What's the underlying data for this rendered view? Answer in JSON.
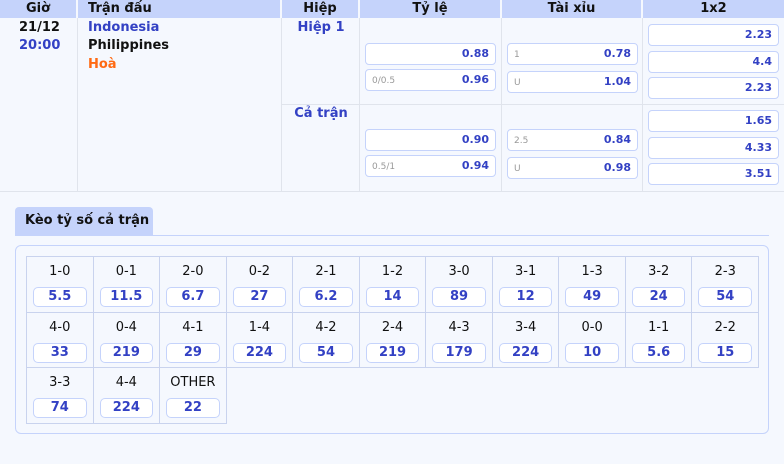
{
  "headers": {
    "time": "Giờ",
    "match": "Trận đấu",
    "half": "Hiệp",
    "handicap": "Tỷ lệ",
    "overunder": "Tài xỉu",
    "x12": "1x2"
  },
  "match": {
    "date": "21/12",
    "time": "20:00",
    "home": "Indonesia",
    "away": "Philippines",
    "draw": "Hoà"
  },
  "rows": [
    {
      "label": "Hiệp 1",
      "handicap": [
        {
          "line": "",
          "odds": "0.88"
        },
        {
          "line": "0/0.5",
          "odds": "0.96"
        }
      ],
      "overunder": [
        {
          "line": "1",
          "odds": "0.78"
        },
        {
          "line": "U",
          "odds": "1.04"
        }
      ],
      "x12": [
        "2.23",
        "4.4",
        "2.23"
      ]
    },
    {
      "label": "Cả trận",
      "handicap": [
        {
          "line": "",
          "odds": "0.90"
        },
        {
          "line": "0.5/1",
          "odds": "0.94"
        }
      ],
      "overunder": [
        {
          "line": "2.5",
          "odds": "0.84"
        },
        {
          "line": "U",
          "odds": "0.98"
        }
      ],
      "x12": [
        "1.65",
        "4.33",
        "3.51"
      ]
    }
  ],
  "correct_score": {
    "tab": "Kèo tỷ số cả trận",
    "items": [
      {
        "score": "1-0",
        "odds": "5.5"
      },
      {
        "score": "0-1",
        "odds": "11.5"
      },
      {
        "score": "2-0",
        "odds": "6.7"
      },
      {
        "score": "0-2",
        "odds": "27"
      },
      {
        "score": "2-1",
        "odds": "6.2"
      },
      {
        "score": "1-2",
        "odds": "14"
      },
      {
        "score": "3-0",
        "odds": "89"
      },
      {
        "score": "3-1",
        "odds": "12"
      },
      {
        "score": "1-3",
        "odds": "49"
      },
      {
        "score": "3-2",
        "odds": "24"
      },
      {
        "score": "2-3",
        "odds": "54"
      },
      {
        "score": "4-0",
        "odds": "33"
      },
      {
        "score": "0-4",
        "odds": "219"
      },
      {
        "score": "4-1",
        "odds": "29"
      },
      {
        "score": "1-4",
        "odds": "224"
      },
      {
        "score": "4-2",
        "odds": "54"
      },
      {
        "score": "2-4",
        "odds": "219"
      },
      {
        "score": "4-3",
        "odds": "179"
      },
      {
        "score": "3-4",
        "odds": "224"
      },
      {
        "score": "0-0",
        "odds": "10"
      },
      {
        "score": "1-1",
        "odds": "5.6"
      },
      {
        "score": "2-2",
        "odds": "15"
      },
      {
        "score": "3-3",
        "odds": "74"
      },
      {
        "score": "4-4",
        "odds": "224"
      },
      {
        "score": "OTHER",
        "odds": "22"
      }
    ]
  },
  "colors": {
    "header_bg": "#c5d3fb",
    "odds": "#3341c4",
    "draw": "#ff6a13"
  }
}
